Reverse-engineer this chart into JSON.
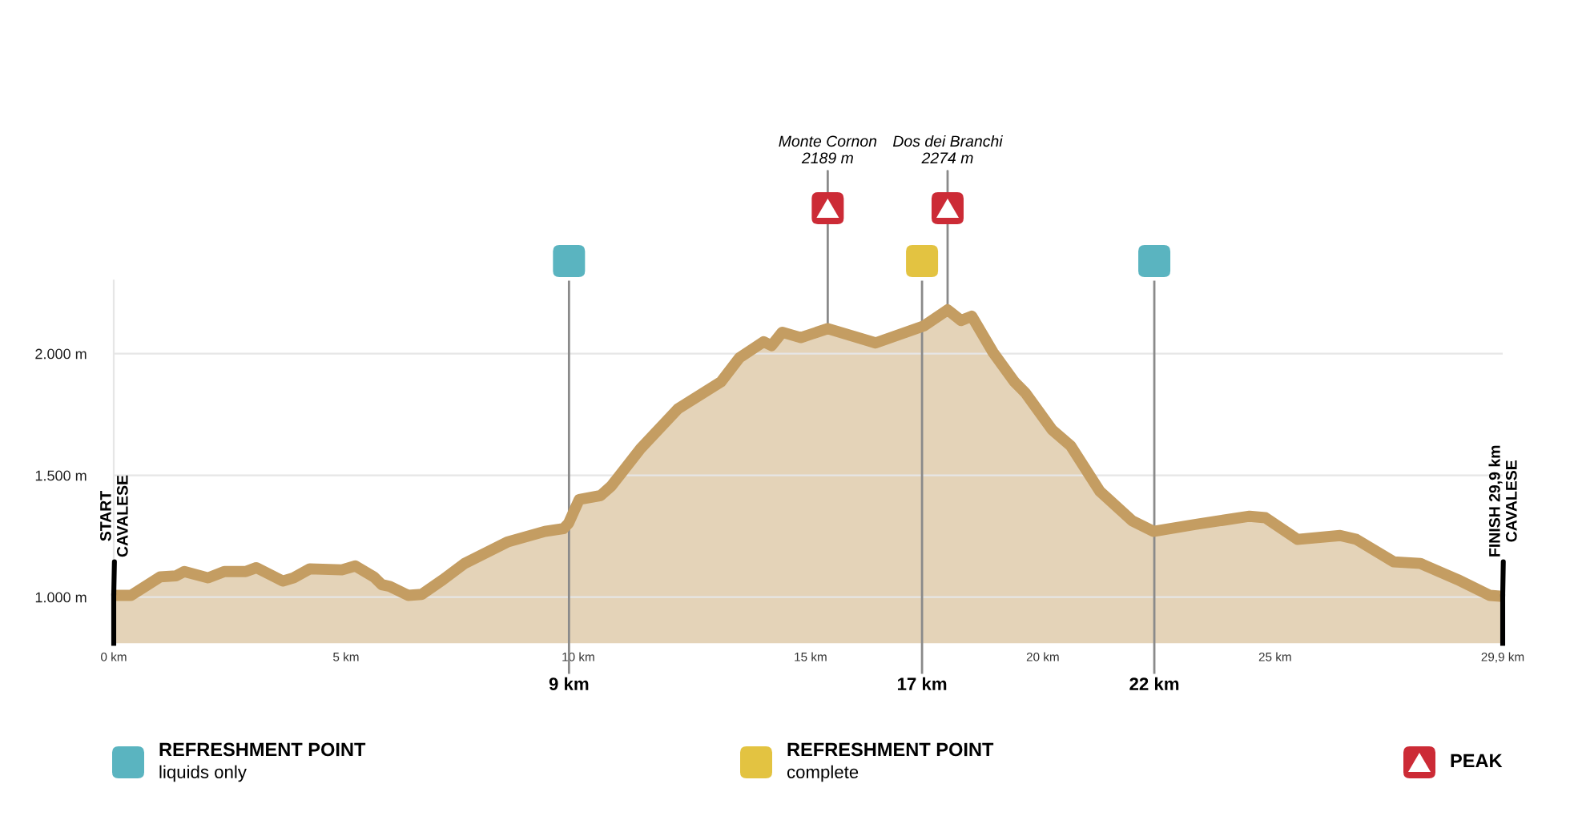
{
  "chart_data": {
    "type": "area",
    "x": [
      0,
      0.37,
      1.0,
      1.34,
      1.52,
      2.03,
      2.38,
      2.84,
      3.07,
      3.64,
      3.87,
      4.22,
      4.91,
      5.2,
      5.6,
      5.77,
      5.94,
      6.34,
      6.63,
      7.09,
      7.55,
      8.47,
      9.28,
      9.68,
      9.79,
      10.02,
      10.48,
      10.71,
      11.34,
      12.15,
      13.07,
      13.47,
      13.99,
      14.16,
      14.39,
      14.79,
      15.37,
      16.4,
      17.44,
      17.95,
      18.24,
      18.47,
      18.93,
      19.39,
      19.62,
      20.2,
      20.6,
      21.23,
      21.92,
      22.38,
      23.3,
      24.45,
      24.79,
      25.48,
      26.4,
      26.75,
      27.55,
      28.13,
      28.93,
      29.62,
      29.9
    ],
    "series": [
      {
        "color": "#c49d62",
        "values": [
          1007,
          1007,
          1083,
          1087,
          1105,
          1079,
          1105,
          1105,
          1121,
          1066,
          1079,
          1116,
          1112,
          1128,
          1083,
          1051,
          1044,
          1007,
          1011,
          1072,
          1138,
          1226,
          1270,
          1281,
          1303,
          1401,
          1417,
          1456,
          1610,
          1774,
          1884,
          1983,
          2049,
          2033,
          2088,
          2066,
          2103,
          2044,
          2114,
          2180,
          2136,
          2154,
          2005,
          1884,
          1840,
          1687,
          1621,
          1434,
          1314,
          1270,
          1299,
          1332,
          1326,
          1237,
          1253,
          1237,
          1145,
          1138,
          1072,
          1007,
          1003
        ]
      }
    ],
    "xlim": [
      0,
      29.9
    ],
    "ylim": [
      810,
      2300
    ],
    "xticks": [
      {
        "value": 0,
        "label": "0 km"
      },
      {
        "value": 5,
        "label": "5 km"
      },
      {
        "value": 10,
        "label": "10 km"
      },
      {
        "value": 15,
        "label": "15 km"
      },
      {
        "value": 20,
        "label": "20 km"
      },
      {
        "value": 25,
        "label": "25 km"
      },
      {
        "value": 29.9,
        "label": "29,9 km"
      }
    ],
    "yticks": [
      {
        "value": 1000,
        "label": "1.000 m"
      },
      {
        "value": 1500,
        "label": "1.500 m"
      },
      {
        "value": 2000,
        "label": "2.000 m"
      }
    ],
    "grid": "y",
    "ref_lines": [
      {
        "axis": "x",
        "value": 9.8,
        "label": "9 km"
      },
      {
        "axis": "x",
        "value": 17.4,
        "label": "17 km"
      },
      {
        "axis": "x",
        "value": 22.4,
        "label": "22 km"
      }
    ],
    "annotations": [
      {
        "text": "Monte Cornon\n2189 m",
        "x": 15.37,
        "y": 2103
      },
      {
        "text": "Dos dei Branchi\n2274 m",
        "x": 17.95,
        "y": 2180
      },
      {
        "text": "START\nCAVALESE",
        "x": 0,
        "y": 1007
      },
      {
        "text": "FINISH 29,9 km\nCAVALESE",
        "x": 29.9,
        "y": 1003
      },
      "REFRESHMENT POINT\nliquids only",
      "REFRESHMENT POINT\ncomplete",
      "PEAK"
    ]
  }
}
